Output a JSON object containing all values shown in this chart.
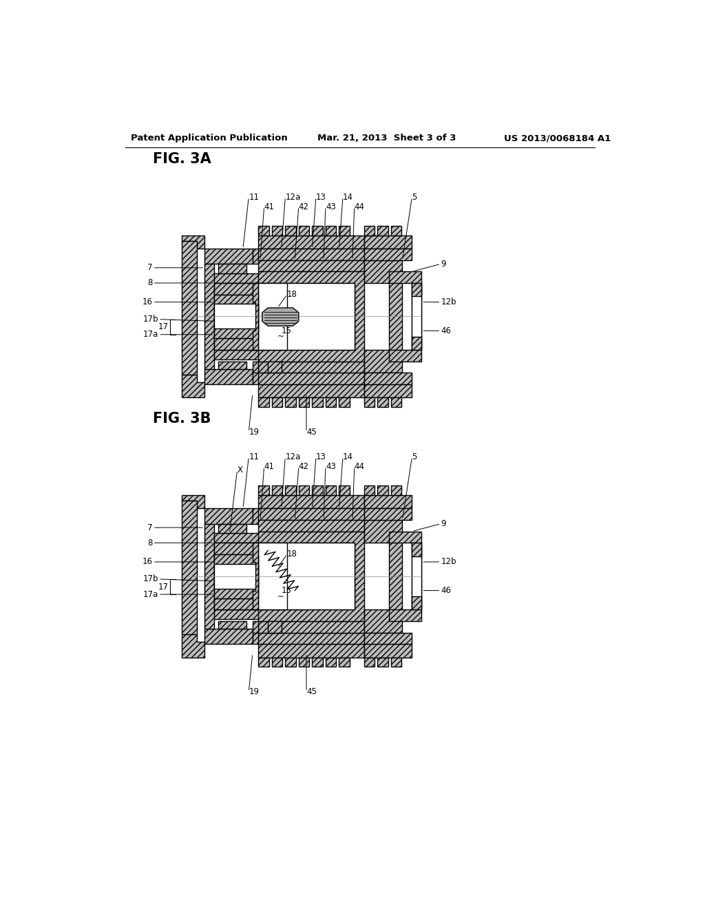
{
  "title_left": "Patent Application Publication",
  "title_mid": "Mar. 21, 2013  Sheet 3 of 3",
  "title_right": "US 2013/0068184 A1",
  "fig_3a_label": "FIG. 3A",
  "fig_3b_label": "FIG. 3B",
  "background_color": "#ffffff",
  "line_color": "#000000",
  "hatch_color": "#000000",
  "header_fontsize": 10,
  "fig_label_fontsize": 16,
  "annotation_fontsize": 9
}
